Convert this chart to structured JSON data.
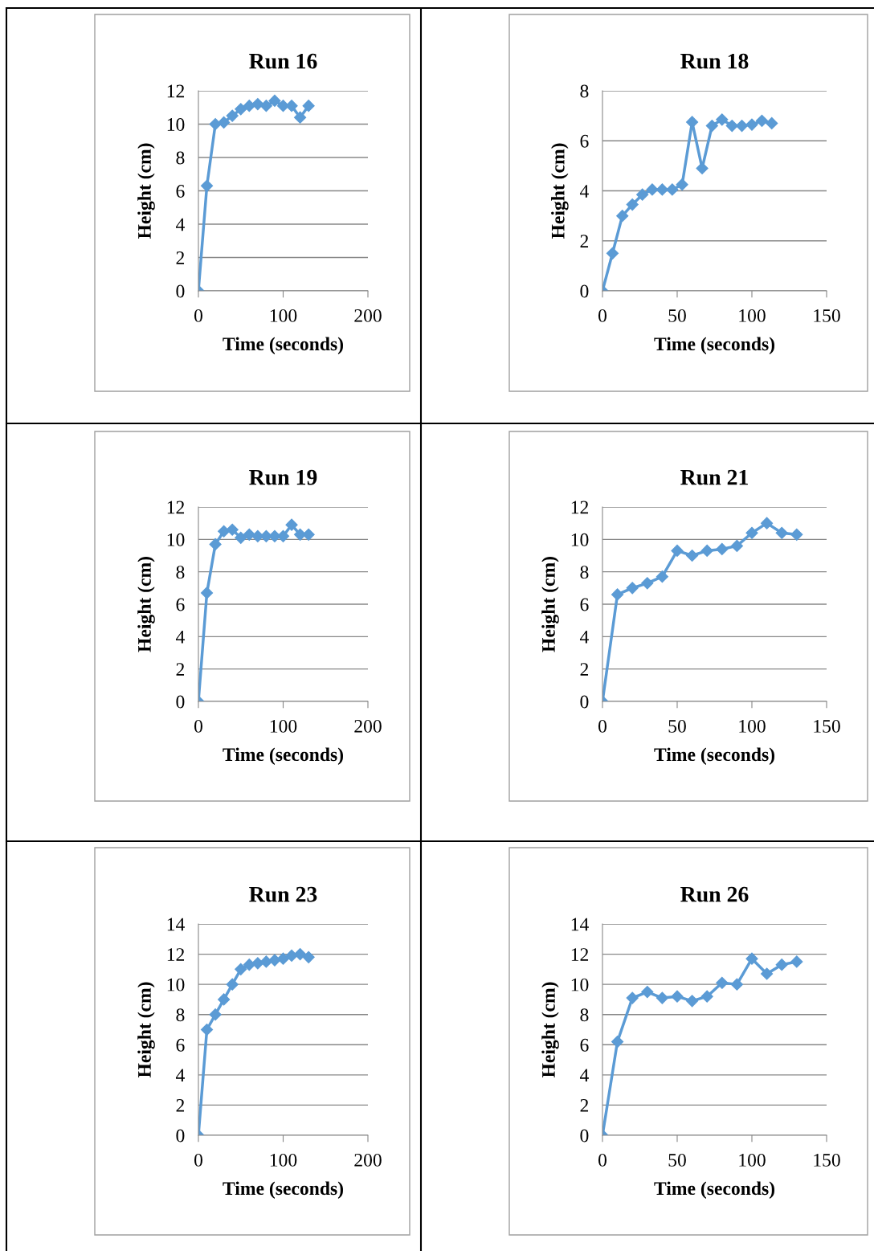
{
  "chart_data": [
    {
      "type": "line",
      "title": "Run 16",
      "xlabel": "Time (seconds)",
      "ylabel": "Height (cm)",
      "x": [
        0,
        10,
        20,
        30,
        40,
        50,
        60,
        70,
        80,
        90,
        100,
        110,
        120,
        130
      ],
      "series": [
        {
          "color": "#5b9bd5",
          "values": [
            0,
            6.3,
            10,
            10.1,
            10.5,
            10.9,
            11.1,
            11.2,
            11.1,
            11.4,
            11.1,
            11.1,
            10.4,
            11.1
          ]
        }
      ],
      "xlim": [
        0,
        200
      ],
      "xticks": [
        0,
        100,
        200
      ],
      "ylim": [
        0,
        12
      ],
      "yticks": [
        0,
        2,
        4,
        6,
        8,
        10,
        12
      ],
      "grid": "y",
      "marker": "diamond",
      "line_style": "solid",
      "legend": false
    },
    {
      "type": "line",
      "title": "Run 18",
      "xlabel": "Time (seconds)",
      "ylabel": "Height (cm)",
      "x": [
        0,
        6.7,
        13.3,
        20,
        26.7,
        33.3,
        40,
        46.7,
        53.3,
        60,
        66.7,
        73.3,
        80,
        86.7,
        93.3,
        100,
        106.7,
        113.3
      ],
      "series": [
        {
          "color": "#5b9bd5",
          "values": [
            0,
            1.5,
            3,
            3.45,
            3.85,
            4.05,
            4.05,
            4.05,
            4.25,
            6.75,
            4.9,
            6.6,
            6.85,
            6.6,
            6.6,
            6.65,
            6.8,
            6.7
          ]
        }
      ],
      "xlim": [
        0,
        150
      ],
      "xticks": [
        0,
        50,
        100,
        150
      ],
      "ylim": [
        0,
        8
      ],
      "yticks": [
        0,
        2,
        4,
        6,
        8
      ],
      "grid": "y",
      "marker": "diamond",
      "line_style": "solid",
      "legend": false
    },
    {
      "type": "line",
      "title": "Run 19",
      "xlabel": "Time (seconds)",
      "ylabel": "Height (cm)",
      "x": [
        0,
        10,
        20,
        30,
        40,
        50,
        60,
        70,
        80,
        90,
        100,
        110,
        120,
        130
      ],
      "series": [
        {
          "color": "#5b9bd5",
          "values": [
            0,
            6.7,
            9.7,
            10.5,
            10.6,
            10.1,
            10.3,
            10.2,
            10.2,
            10.2,
            10.2,
            10.9,
            10.3,
            10.3
          ]
        }
      ],
      "xlim": [
        0,
        200
      ],
      "xticks": [
        0,
        100,
        200
      ],
      "ylim": [
        0,
        12
      ],
      "yticks": [
        0,
        2,
        4,
        6,
        8,
        10,
        12
      ],
      "grid": "y",
      "marker": "diamond",
      "line_style": "solid",
      "legend": false
    },
    {
      "type": "line",
      "title": "Run 21",
      "xlabel": "Time (seconds)",
      "ylabel": "Height (cm)",
      "x": [
        0,
        10,
        20,
        30,
        40,
        50,
        60,
        70,
        80,
        90,
        100,
        110,
        120,
        130
      ],
      "series": [
        {
          "color": "#5b9bd5",
          "values": [
            0,
            6.6,
            7.0,
            7.3,
            7.7,
            9.3,
            9.0,
            9.3,
            9.4,
            9.6,
            10.4,
            11.0,
            10.4,
            10.3
          ]
        }
      ],
      "xlim": [
        0,
        150
      ],
      "xticks": [
        0,
        50,
        100,
        150
      ],
      "ylim": [
        0,
        12
      ],
      "yticks": [
        0,
        2,
        4,
        6,
        8,
        10,
        12
      ],
      "grid": "y",
      "marker": "diamond",
      "line_style": "solid",
      "legend": false
    },
    {
      "type": "line",
      "title": "Run 23",
      "xlabel": "Time (seconds)",
      "ylabel": "Height (cm)",
      "x": [
        0,
        10,
        20,
        30,
        40,
        50,
        60,
        70,
        80,
        90,
        100,
        110,
        120,
        130
      ],
      "series": [
        {
          "color": "#5b9bd5",
          "values": [
            0,
            7,
            8,
            9,
            10,
            11,
            11.3,
            11.4,
            11.5,
            11.6,
            11.7,
            11.9,
            12.0,
            11.8
          ]
        }
      ],
      "xlim": [
        0,
        200
      ],
      "xticks": [
        0,
        100,
        200
      ],
      "ylim": [
        0,
        14
      ],
      "yticks": [
        0,
        2,
        4,
        6,
        8,
        10,
        12,
        14
      ],
      "grid": "y",
      "marker": "diamond",
      "line_style": "solid",
      "legend": false
    },
    {
      "type": "line",
      "title": "Run 26",
      "xlabel": "Time (seconds)",
      "ylabel": "Height (cm)",
      "x": [
        0,
        10,
        20,
        30,
        40,
        50,
        60,
        70,
        80,
        90,
        100,
        110,
        120,
        130
      ],
      "series": [
        {
          "color": "#5b9bd5",
          "values": [
            0,
            6.2,
            9.1,
            9.5,
            9.1,
            9.2,
            8.9,
            9.2,
            10.1,
            10.0,
            11.7,
            10.7,
            11.3,
            11.5
          ]
        }
      ],
      "xlim": [
        0,
        150
      ],
      "xticks": [
        0,
        50,
        100,
        150
      ],
      "ylim": [
        0,
        14
      ],
      "yticks": [
        0,
        2,
        4,
        6,
        8,
        10,
        12,
        14
      ],
      "grid": "y",
      "marker": "diamond",
      "line_style": "solid",
      "legend": false
    }
  ]
}
